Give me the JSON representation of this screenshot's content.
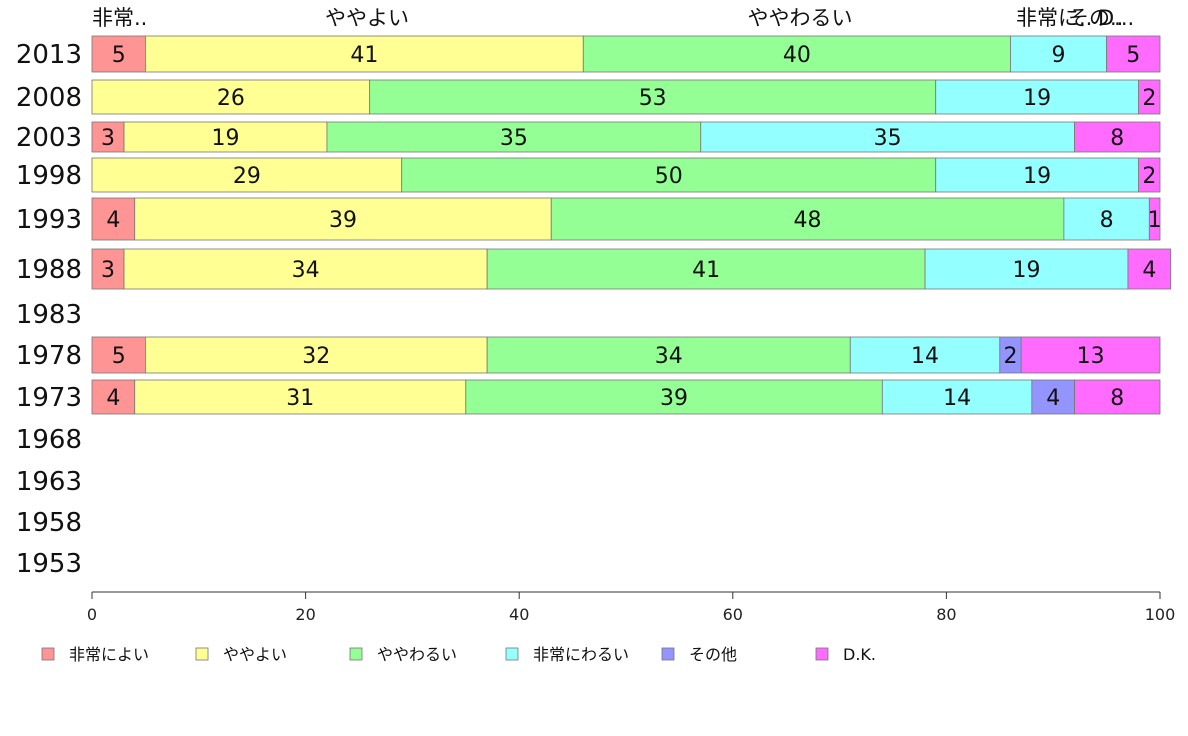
{
  "chart_data": {
    "type": "bar",
    "orientation": "horizontal",
    "stacked": true,
    "xlim": [
      0,
      100
    ],
    "x_ticks": [
      "0",
      "20",
      "40",
      "60",
      "80",
      "100"
    ],
    "grid": false,
    "legend_placement": "bottom",
    "categories": [
      "2013",
      "2008",
      "2003",
      "1998",
      "1993",
      "1988",
      "1983",
      "1978",
      "1973",
      "1968",
      "1963",
      "1958",
      "1953"
    ],
    "series": [
      {
        "name": "非常によい",
        "color": "#ff9494",
        "values": [
          5,
          null,
          3,
          null,
          4,
          3,
          null,
          5,
          4,
          null,
          null,
          null,
          null
        ]
      },
      {
        "name": "ややよい",
        "color": "#ffff94",
        "values": [
          41,
          26,
          19,
          29,
          39,
          34,
          null,
          32,
          31,
          null,
          null,
          null,
          null
        ]
      },
      {
        "name": "ややわるい",
        "color": "#94ff94",
        "values": [
          40,
          53,
          35,
          50,
          48,
          41,
          null,
          34,
          39,
          null,
          null,
          null,
          null
        ]
      },
      {
        "name": "非常にわるい",
        "color": "#94ffff",
        "values": [
          9,
          19,
          35,
          19,
          8,
          19,
          null,
          14,
          14,
          null,
          null,
          null,
          null
        ]
      },
      {
        "name": "その他",
        "color": "#9494ff",
        "values": [
          null,
          null,
          null,
          null,
          null,
          null,
          null,
          2,
          4,
          null,
          null,
          null,
          null
        ]
      },
      {
        "name": "D.K.",
        "color": "#ff6bff",
        "values": [
          5,
          2,
          8,
          2,
          1,
          4,
          null,
          13,
          8,
          null,
          null,
          null,
          null
        ]
      }
    ],
    "top_labels": [
      "非常..",
      "ややよい",
      "ややわるい",
      "非常に..",
      "その..",
      "D..."
    ]
  }
}
